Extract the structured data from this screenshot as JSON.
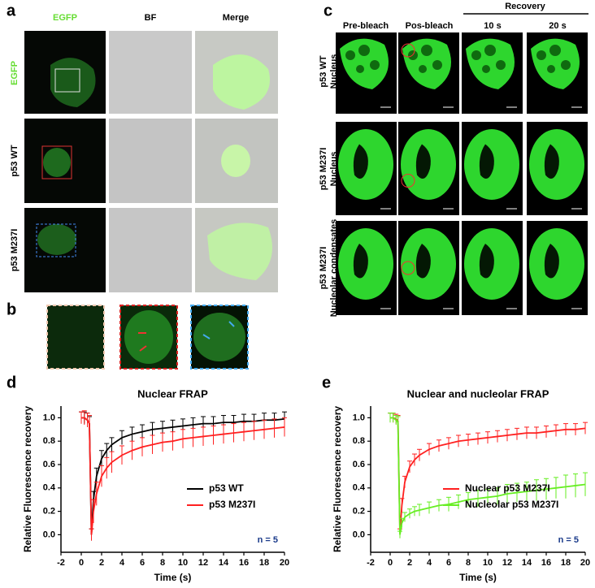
{
  "figure": {
    "letters": [
      "a",
      "b",
      "c",
      "d",
      "e"
    ],
    "panel_a": {
      "columns": [
        "EGFP",
        "BF",
        "Merge"
      ],
      "rows": [
        "EGFP",
        "p53 WT",
        "p53 M237I"
      ]
    },
    "panel_c": {
      "columns": [
        "Pre-bleach",
        "Pos-bleach",
        "10 s",
        "20 s"
      ],
      "group": "Recovery",
      "rows": [
        [
          "p53 WT",
          "Nucleus"
        ],
        [
          "p53 M237I",
          "Nucleus"
        ],
        [
          "p53 M237I",
          "Nucleolar condensates"
        ]
      ]
    }
  },
  "chart_data": [
    {
      "type": "line",
      "title": "Nuclear FRAP",
      "xlabel": "Time (s)",
      "ylabel": "Relative Fluorescence recovery",
      "x": [
        0,
        0.3,
        0.6,
        0.8,
        1.0,
        1.2,
        1.5,
        2,
        2.5,
        3,
        4,
        5,
        6,
        7,
        8,
        9,
        10,
        11,
        12,
        13,
        14,
        15,
        16,
        17,
        18,
        19,
        20
      ],
      "series": [
        {
          "name": "p53 WT",
          "color": "#000000",
          "values": [
            1.0,
            1.0,
            0.98,
            0.95,
            0.0,
            0.3,
            0.5,
            0.65,
            0.72,
            0.77,
            0.83,
            0.86,
            0.88,
            0.9,
            0.91,
            0.92,
            0.93,
            0.94,
            0.95,
            0.95,
            0.96,
            0.96,
            0.97,
            0.97,
            0.98,
            0.98,
            0.99
          ],
          "errors": [
            0.05,
            0.05,
            0.06,
            0.06,
            0.05,
            0.07,
            0.07,
            0.07,
            0.06,
            0.06,
            0.06,
            0.06,
            0.06,
            0.06,
            0.06,
            0.06,
            0.06,
            0.06,
            0.06,
            0.06,
            0.06,
            0.06,
            0.06,
            0.06,
            0.06,
            0.06,
            0.06
          ]
        },
        {
          "name": "p53 M237I",
          "color": "#ff2020",
          "values": [
            1.0,
            1.0,
            0.98,
            0.95,
            0.0,
            0.2,
            0.35,
            0.5,
            0.57,
            0.62,
            0.68,
            0.72,
            0.75,
            0.77,
            0.79,
            0.8,
            0.82,
            0.83,
            0.84,
            0.85,
            0.86,
            0.87,
            0.88,
            0.89,
            0.9,
            0.91,
            0.92
          ],
          "errors": [
            0.05,
            0.06,
            0.06,
            0.07,
            0.05,
            0.1,
            0.1,
            0.09,
            0.09,
            0.09,
            0.08,
            0.08,
            0.08,
            0.08,
            0.08,
            0.08,
            0.08,
            0.08,
            0.08,
            0.08,
            0.08,
            0.08,
            0.08,
            0.08,
            0.08,
            0.08,
            0.08
          ]
        }
      ],
      "xlim": [
        -2,
        20
      ],
      "xticks": [
        -2,
        0,
        2,
        4,
        6,
        8,
        10,
        12,
        14,
        16,
        18,
        20
      ],
      "ylim": [
        -0.15,
        1.1
      ],
      "yticks": [
        {
          "value": 0,
          "label": "0.0"
        },
        {
          "value": 0.2,
          "label": "0.2"
        },
        {
          "value": 0.4,
          "label": "0.4"
        },
        {
          "value": 0.6,
          "label": "0.6"
        },
        {
          "value": 0.8,
          "label": "0.8"
        },
        {
          "value": 1,
          "label": "1.0"
        }
      ],
      "legend": "lower right",
      "annotation": "n = 5"
    },
    {
      "type": "line",
      "title": "Nuclear and nucleolar FRAP",
      "xlabel": "Time (s)",
      "ylabel": "Relative Fluorescence recovery",
      "x": [
        0,
        0.3,
        0.6,
        0.8,
        1.0,
        1.2,
        1.5,
        2,
        2.5,
        3,
        4,
        5,
        6,
        7,
        8,
        9,
        10,
        11,
        12,
        13,
        14,
        15,
        16,
        17,
        18,
        19,
        20
      ],
      "series": [
        {
          "name": "Nuclear p53 M237I",
          "color": "#ff2020",
          "values": [
            1.0,
            1.0,
            0.99,
            0.97,
            0.02,
            0.25,
            0.45,
            0.58,
            0.64,
            0.68,
            0.73,
            0.76,
            0.78,
            0.8,
            0.81,
            0.82,
            0.83,
            0.84,
            0.85,
            0.86,
            0.87,
            0.87,
            0.88,
            0.89,
            0.9,
            0.9,
            0.91
          ],
          "errors": [
            0.04,
            0.04,
            0.04,
            0.05,
            0.03,
            0.06,
            0.05,
            0.05,
            0.05,
            0.05,
            0.05,
            0.05,
            0.05,
            0.05,
            0.05,
            0.05,
            0.05,
            0.05,
            0.05,
            0.05,
            0.05,
            0.05,
            0.05,
            0.05,
            0.05,
            0.05,
            0.05
          ]
        },
        {
          "name": "Nucleolar p53 M237I",
          "color": "#66ee22",
          "values": [
            1.0,
            1.0,
            0.98,
            0.96,
            0.0,
            0.1,
            0.15,
            0.18,
            0.2,
            0.21,
            0.23,
            0.25,
            0.26,
            0.28,
            0.3,
            0.31,
            0.32,
            0.33,
            0.35,
            0.36,
            0.37,
            0.38,
            0.39,
            0.4,
            0.41,
            0.42,
            0.43
          ],
          "errors": [
            0.04,
            0.04,
            0.04,
            0.05,
            0.03,
            0.04,
            0.04,
            0.04,
            0.04,
            0.05,
            0.05,
            0.05,
            0.06,
            0.06,
            0.06,
            0.07,
            0.07,
            0.07,
            0.08,
            0.08,
            0.08,
            0.09,
            0.09,
            0.09,
            0.1,
            0.1,
            0.1
          ]
        }
      ],
      "xlim": [
        -2,
        20
      ],
      "xticks": [
        -2,
        0,
        2,
        4,
        6,
        8,
        10,
        12,
        14,
        16,
        18,
        20
      ],
      "ylim": [
        -0.15,
        1.1
      ],
      "yticks": [
        {
          "value": 0,
          "label": "0.0"
        },
        {
          "value": 0.2,
          "label": "0.2"
        },
        {
          "value": 0.4,
          "label": "0.4"
        },
        {
          "value": 0.6,
          "label": "0.6"
        },
        {
          "value": 0.8,
          "label": "0.8"
        },
        {
          "value": 1,
          "label": "1.0"
        }
      ],
      "legend": "lower right",
      "annotation": "n = 5"
    }
  ]
}
